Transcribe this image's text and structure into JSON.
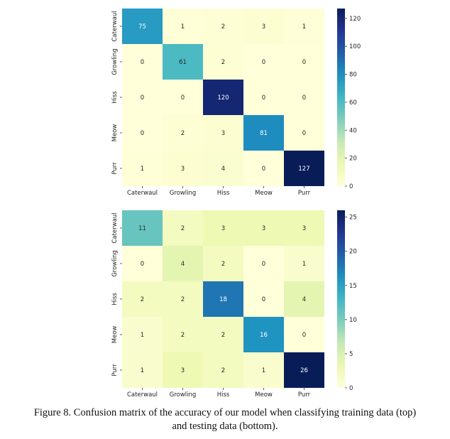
{
  "chart_data": [
    {
      "type": "heatmap",
      "title": "",
      "xlabel": "",
      "ylabel": "",
      "x_categories": [
        "Caterwaul",
        "Growling",
        "Hiss",
        "Meow",
        "Purr"
      ],
      "y_categories": [
        "Caterwaul",
        "Growling",
        "Hiss",
        "Meow",
        "Purr"
      ],
      "values": [
        [
          75,
          1,
          2,
          3,
          1
        ],
        [
          0,
          61,
          2,
          0,
          0
        ],
        [
          0,
          0,
          120,
          0,
          0
        ],
        [
          0,
          2,
          3,
          81,
          0
        ],
        [
          1,
          3,
          4,
          0,
          127
        ]
      ],
      "colormap": "YlGnBu",
      "colorbar": {
        "min": 0,
        "max": 127,
        "ticks": [
          0,
          20,
          40,
          60,
          80,
          100,
          120
        ]
      }
    },
    {
      "type": "heatmap",
      "title": "",
      "xlabel": "",
      "ylabel": "",
      "x_categories": [
        "Caterwaul",
        "Growling",
        "Hiss",
        "Meow",
        "Purr"
      ],
      "y_categories": [
        "Caterwaul",
        "Growling",
        "Hiss",
        "Meow",
        "Purr"
      ],
      "values": [
        [
          11,
          2,
          3,
          3,
          3
        ],
        [
          0,
          4,
          2,
          0,
          1
        ],
        [
          2,
          2,
          18,
          0,
          4
        ],
        [
          1,
          2,
          2,
          16,
          0
        ],
        [
          1,
          3,
          2,
          1,
          26
        ]
      ],
      "colormap": "YlGnBu",
      "colorbar": {
        "min": 0,
        "max": 26,
        "ticks": [
          0,
          5,
          10,
          15,
          20,
          25
        ]
      }
    }
  ],
  "caption": {
    "line1": "Figure 8. Confusion matrix of the accuracy of our model when classifying training data (top)",
    "line2": "and testing data (bottom)."
  }
}
